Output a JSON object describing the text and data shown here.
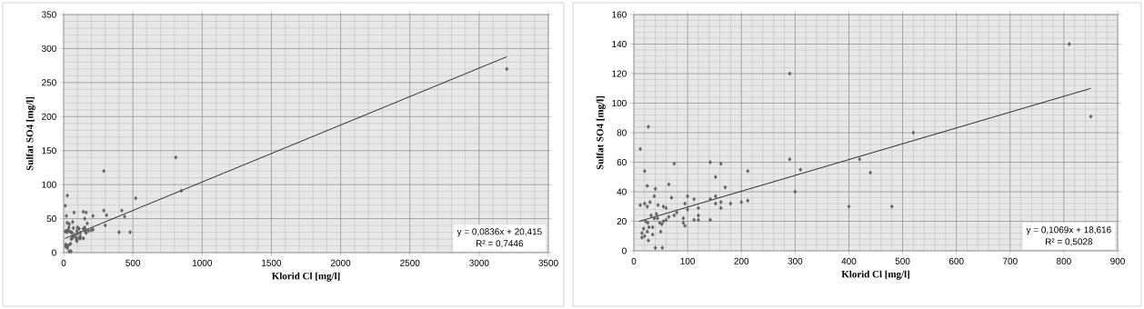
{
  "chart_data": [
    {
      "type": "scatter",
      "xlabel": "Klorid Cl [mg/l]",
      "ylabel": "Sulfat SO4 [mg/l]",
      "annotations": [
        "y = 0,0836x + 20,415",
        "R² = 0,7446"
      ],
      "xlim": [
        0,
        3500
      ],
      "ylim": [
        0,
        350
      ],
      "xticks": [
        0,
        500,
        1000,
        1500,
        2000,
        2500,
        3000,
        3500
      ],
      "yticks": [
        0,
        50,
        100,
        150,
        200,
        250,
        300,
        350
      ],
      "grid": true,
      "series": [
        {
          "marker": "diamond",
          "color": "#606060",
          "x": [
            12,
            27,
            20,
            25,
            40,
            38,
            65,
            75,
            70,
            12,
            20,
            25,
            30,
            45,
            55,
            60,
            40,
            53,
            27,
            15,
            15,
            20,
            50,
            35,
            100,
            95,
            100,
            112,
            120,
            92,
            95,
            92,
            112,
            120,
            120,
            142,
            162,
            152,
            142,
            152,
            152,
            162,
            162,
            142,
            170,
            180,
            200,
            212,
            212,
            80,
            75,
            65,
            60,
            55,
            290,
            290,
            310,
            300,
            400,
            420,
            440,
            480,
            520,
            810,
            850,
            3200
          ],
          "values": [
            69,
            84,
            54,
            44,
            42,
            37,
            45,
            59,
            36,
            31,
            32,
            30,
            33,
            31,
            30,
            29,
            2,
            2,
            7,
            12,
            9,
            10,
            13,
            11,
            37,
            32,
            28,
            35,
            29,
            22,
            17,
            19,
            21,
            24,
            21,
            60,
            59,
            50,
            35,
            37,
            32,
            33,
            29,
            21,
            43,
            32,
            33,
            34,
            54,
            26,
            24,
            23,
            21,
            20,
            120,
            62,
            55,
            40,
            30,
            62,
            53,
            30,
            80,
            140,
            91,
            270
          ]
        },
        {
          "type": "line",
          "color": "#000000",
          "x": [
            10,
            3200
          ],
          "values": [
            21,
            288
          ]
        }
      ]
    },
    {
      "type": "scatter",
      "xlabel": "Klorid Cl [mg/l]",
      "ylabel": "Sulfat SO4 [mg/l]",
      "annotations": [
        "y = 0,1069x + 18,616",
        "R² = 0,5028"
      ],
      "xlim": [
        0,
        900
      ],
      "ylim": [
        0,
        160
      ],
      "xticks": [
        0,
        100,
        200,
        300,
        400,
        500,
        600,
        700,
        800,
        900
      ],
      "yticks": [
        0,
        20,
        40,
        60,
        80,
        100,
        120,
        140,
        160
      ],
      "grid": true,
      "series": [
        {
          "marker": "diamond",
          "color": "#606060",
          "x": [
            12,
            27,
            20,
            25,
            40,
            38,
            65,
            75,
            70,
            12,
            20,
            25,
            30,
            45,
            55,
            60,
            40,
            53,
            27,
            15,
            15,
            20,
            50,
            35,
            100,
            95,
            100,
            112,
            120,
            92,
            95,
            92,
            112,
            120,
            120,
            142,
            162,
            152,
            142,
            152,
            152,
            162,
            162,
            142,
            170,
            180,
            200,
            212,
            212,
            80,
            75,
            65,
            60,
            55,
            290,
            290,
            310,
            300,
            400,
            420,
            440,
            480,
            520,
            810,
            850,
            18,
            22,
            28,
            32,
            38,
            42,
            48,
            25,
            35,
            44,
            52,
            26
          ],
          "values": [
            69,
            84,
            54,
            44,
            42,
            37,
            45,
            59,
            36,
            31,
            32,
            30,
            33,
            31,
            30,
            29,
            2,
            2,
            7,
            12,
            9,
            10,
            13,
            11,
            37,
            32,
            28,
            35,
            29,
            22,
            17,
            19,
            21,
            24,
            21,
            60,
            59,
            50,
            35,
            37,
            32,
            33,
            29,
            21,
            43,
            32,
            33,
            34,
            54,
            26,
            24,
            23,
            21,
            20,
            120,
            62,
            55,
            40,
            30,
            62,
            53,
            30,
            80,
            140,
            91,
            15,
            20,
            16,
            24,
            22,
            25,
            19,
            13,
            16,
            22,
            18,
            19
          ]
        },
        {
          "type": "line",
          "color": "#000000",
          "x": [
            10,
            850
          ],
          "values": [
            20,
            110
          ]
        }
      ]
    }
  ]
}
